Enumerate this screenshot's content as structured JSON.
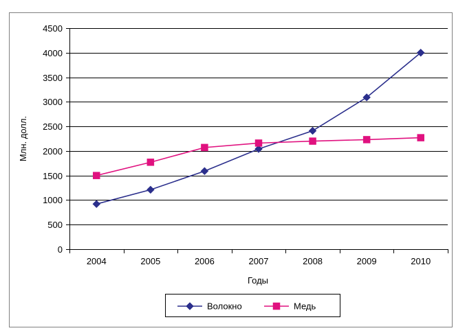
{
  "chart_data": {
    "type": "line",
    "categories": [
      "2004",
      "2005",
      "2006",
      "2007",
      "2008",
      "2009",
      "2010"
    ],
    "series": [
      {
        "name": "Волокно",
        "marker": "diamond",
        "color": "#2b2f8c",
        "values": [
          920,
          1210,
          1590,
          2040,
          2410,
          3090,
          4000
        ]
      },
      {
        "name": "Медь",
        "marker": "square",
        "color": "#e0117f",
        "values": [
          1500,
          1770,
          2070,
          2160,
          2200,
          2230,
          2270
        ]
      }
    ],
    "xlabel": "Годы",
    "ylabel": "Млн. долл.",
    "ylim": [
      0,
      4500
    ],
    "yticks": [
      "0",
      "500",
      "1000",
      "1500",
      "2000",
      "2500",
      "3000",
      "3500",
      "4000",
      "4500"
    ],
    "grid": true,
    "legend": "bottom"
  }
}
